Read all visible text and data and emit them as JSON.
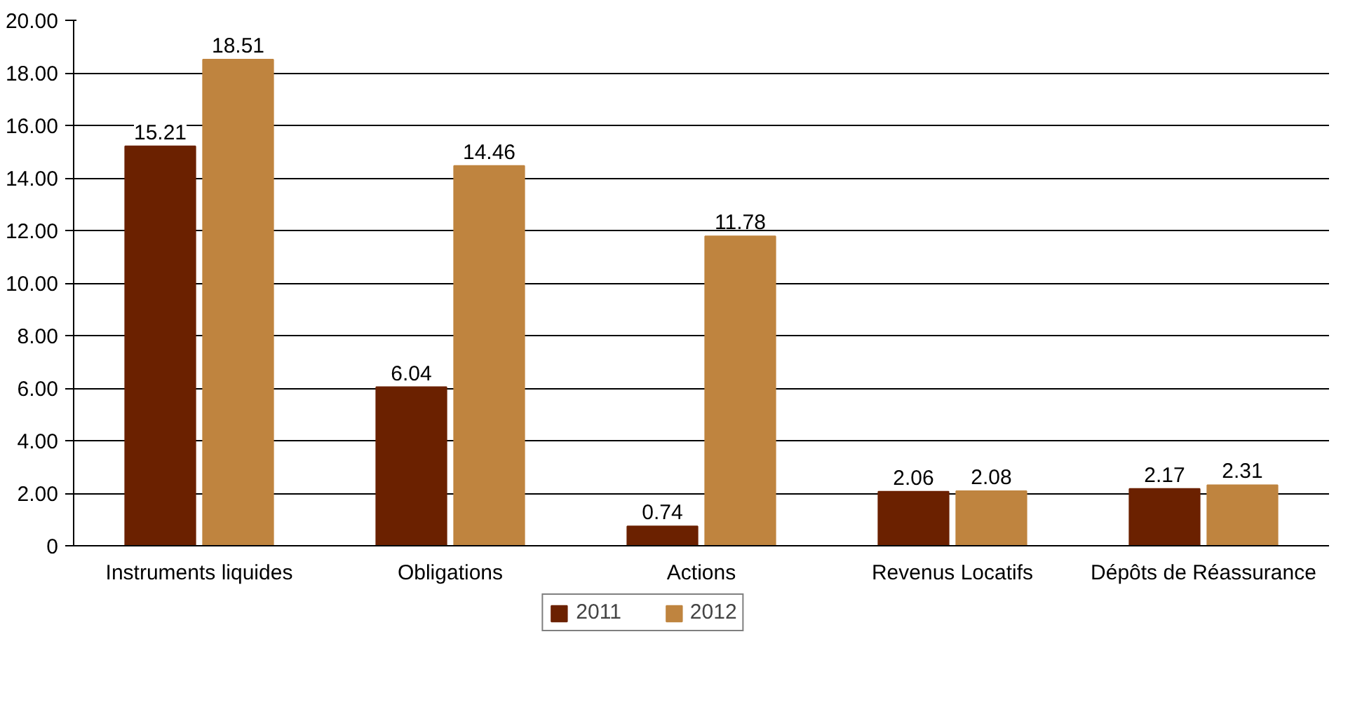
{
  "chart_data": {
    "type": "bar",
    "categories": [
      "Instruments liquides",
      "Obligations",
      "Actions",
      "Revenus Locatifs",
      "Dépôts de Réassurance"
    ],
    "series": [
      {
        "name": "2011",
        "color": "#6b2100",
        "values": [
          15.21,
          6.04,
          0.74,
          2.06,
          2.17
        ]
      },
      {
        "name": "2012",
        "color": "#bf843f",
        "values": [
          18.51,
          14.46,
          11.78,
          2.08,
          2.31
        ]
      }
    ],
    "ylim": [
      0,
      20
    ],
    "yticks": [
      {
        "value": 0,
        "label": "0"
      },
      {
        "value": 2,
        "label": "2.00"
      },
      {
        "value": 4,
        "label": "4.00"
      },
      {
        "value": 6,
        "label": "6.00"
      },
      {
        "value": 8,
        "label": "8.00"
      },
      {
        "value": 10,
        "label": "10.00"
      },
      {
        "value": 12,
        "label": "12.00"
      },
      {
        "value": 14,
        "label": "14.00"
      },
      {
        "value": 16,
        "label": "16.00"
      },
      {
        "value": 18,
        "label": "18.00"
      },
      {
        "value": 20,
        "label": "20.00"
      }
    ],
    "grid": "y",
    "legend": "bottom",
    "data_labels": true
  }
}
